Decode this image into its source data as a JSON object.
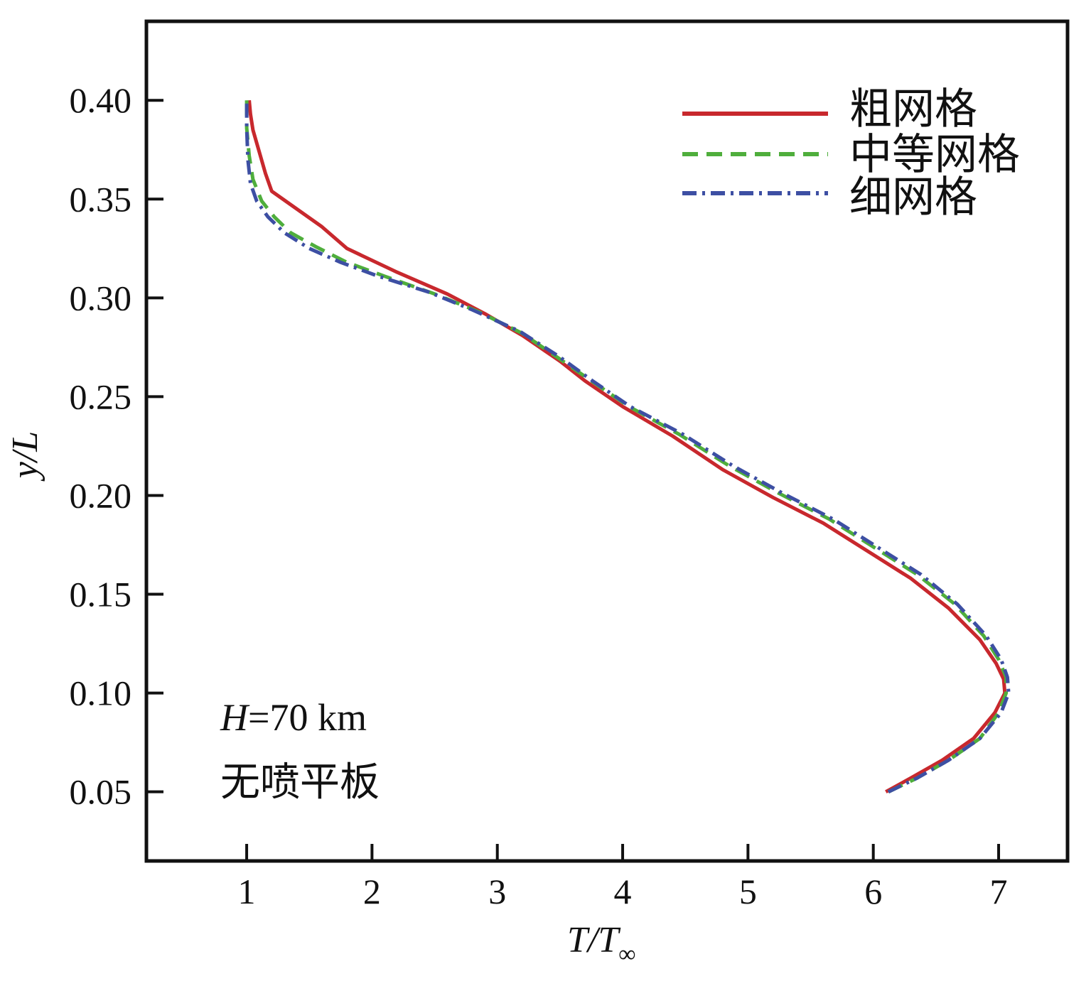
{
  "chart_data": {
    "type": "line",
    "xlabel_main": "T/T",
    "xlabel_sub": "∞",
    "ylabel": "y/L",
    "xlim": [
      0.2,
      7.55
    ],
    "ylim": [
      0.015,
      0.44
    ],
    "xticks": [
      {
        "value": 1,
        "label": "1"
      },
      {
        "value": 2,
        "label": "2"
      },
      {
        "value": 3,
        "label": "3"
      },
      {
        "value": 4,
        "label": "4"
      },
      {
        "value": 5,
        "label": "5"
      },
      {
        "value": 6,
        "label": "6"
      },
      {
        "value": 7,
        "label": "7"
      }
    ],
    "yticks": [
      {
        "value": 0.05,
        "label": "0.05"
      },
      {
        "value": 0.1,
        "label": "0.10"
      },
      {
        "value": 0.15,
        "label": "0.15"
      },
      {
        "value": 0.2,
        "label": "0.20"
      },
      {
        "value": 0.25,
        "label": "0.25"
      },
      {
        "value": 0.3,
        "label": "0.30"
      },
      {
        "value": 0.35,
        "label": "0.35"
      },
      {
        "value": 0.4,
        "label": "0.40"
      }
    ],
    "legend_position": "top-right",
    "annotations": {
      "altitude_italic": "H",
      "altitude_rest": "=70 km",
      "case": "无喷平板"
    },
    "series": [
      {
        "name": "粗网格",
        "color": "#c8282d",
        "dash": "solid",
        "points": [
          [
            6.1,
            0.05
          ],
          [
            6.3,
            0.057
          ],
          [
            6.55,
            0.066
          ],
          [
            6.8,
            0.077
          ],
          [
            6.97,
            0.09
          ],
          [
            7.05,
            0.1
          ],
          [
            7.04,
            0.107
          ],
          [
            6.98,
            0.115
          ],
          [
            6.85,
            0.127
          ],
          [
            6.6,
            0.143
          ],
          [
            6.3,
            0.158
          ],
          [
            6.0,
            0.17
          ],
          [
            5.6,
            0.186
          ],
          [
            5.2,
            0.199
          ],
          [
            4.8,
            0.213
          ],
          [
            4.4,
            0.23
          ],
          [
            4.0,
            0.245
          ],
          [
            3.7,
            0.258
          ],
          [
            3.5,
            0.268
          ],
          [
            3.2,
            0.281
          ],
          [
            2.9,
            0.292
          ],
          [
            2.6,
            0.302
          ],
          [
            2.2,
            0.313
          ],
          [
            1.8,
            0.325
          ],
          [
            1.6,
            0.336
          ],
          [
            1.4,
            0.345
          ],
          [
            1.2,
            0.354
          ],
          [
            1.15,
            0.363
          ],
          [
            1.1,
            0.374
          ],
          [
            1.05,
            0.385
          ],
          [
            1.03,
            0.393
          ],
          [
            1.02,
            0.4
          ]
        ]
      },
      {
        "name": "中等网格",
        "color": "#4fae3c",
        "dash": "dashed",
        "points": [
          [
            6.12,
            0.05
          ],
          [
            6.35,
            0.057
          ],
          [
            6.6,
            0.066
          ],
          [
            6.85,
            0.077
          ],
          [
            7.0,
            0.09
          ],
          [
            7.06,
            0.1
          ],
          [
            7.06,
            0.108
          ],
          [
            7.0,
            0.117
          ],
          [
            6.88,
            0.129
          ],
          [
            6.65,
            0.145
          ],
          [
            6.35,
            0.16
          ],
          [
            6.05,
            0.172
          ],
          [
            5.65,
            0.188
          ],
          [
            5.25,
            0.201
          ],
          [
            4.85,
            0.215
          ],
          [
            4.45,
            0.231
          ],
          [
            4.05,
            0.245
          ],
          [
            3.75,
            0.258
          ],
          [
            3.5,
            0.269
          ],
          [
            3.2,
            0.282
          ],
          [
            2.85,
            0.293
          ],
          [
            2.5,
            0.302
          ],
          [
            2.1,
            0.311
          ],
          [
            1.8,
            0.318
          ],
          [
            1.55,
            0.326
          ],
          [
            1.35,
            0.333
          ],
          [
            1.22,
            0.341
          ],
          [
            1.12,
            0.349
          ],
          [
            1.05,
            0.36
          ],
          [
            1.02,
            0.372
          ],
          [
            1.0,
            0.386
          ],
          [
            1.0,
            0.4
          ]
        ]
      },
      {
        "name": "细网格",
        "color": "#3d4fa3",
        "dash": "dashdot",
        "points": [
          [
            6.12,
            0.05
          ],
          [
            6.35,
            0.057
          ],
          [
            6.6,
            0.066
          ],
          [
            6.85,
            0.077
          ],
          [
            7.02,
            0.09
          ],
          [
            7.08,
            0.1
          ],
          [
            7.07,
            0.108
          ],
          [
            7.02,
            0.117
          ],
          [
            6.9,
            0.129
          ],
          [
            6.67,
            0.145
          ],
          [
            6.38,
            0.16
          ],
          [
            6.08,
            0.172
          ],
          [
            5.68,
            0.188
          ],
          [
            5.28,
            0.201
          ],
          [
            4.88,
            0.215
          ],
          [
            4.48,
            0.231
          ],
          [
            4.06,
            0.245
          ],
          [
            3.76,
            0.258
          ],
          [
            3.5,
            0.27
          ],
          [
            3.18,
            0.283
          ],
          [
            2.8,
            0.294
          ],
          [
            2.45,
            0.303
          ],
          [
            2.05,
            0.311
          ],
          [
            1.75,
            0.318
          ],
          [
            1.5,
            0.325
          ],
          [
            1.3,
            0.333
          ],
          [
            1.17,
            0.341
          ],
          [
            1.08,
            0.349
          ],
          [
            1.03,
            0.358
          ],
          [
            1.01,
            0.37
          ],
          [
            1.0,
            0.386
          ],
          [
            1.0,
            0.4
          ]
        ]
      }
    ]
  }
}
